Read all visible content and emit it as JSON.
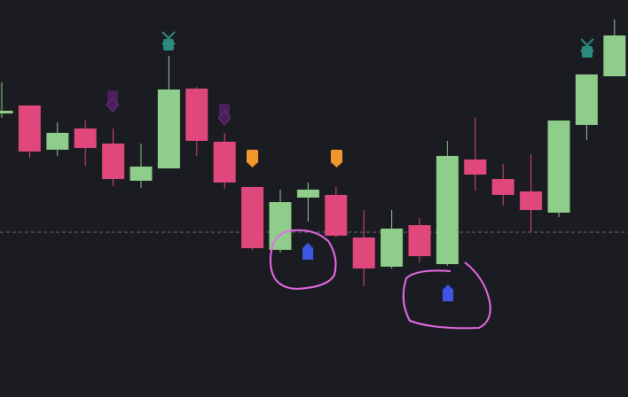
{
  "chart_data": {
    "type": "candlestick",
    "categories": [
      null,
      null,
      null,
      null,
      null,
      null,
      null,
      null,
      null,
      null,
      null,
      null,
      null,
      null,
      null,
      null,
      null,
      null,
      null,
      null,
      null,
      null,
      null
    ],
    "open": [
      320,
      329,
      279,
      303,
      286,
      244,
      258,
      348,
      288,
      237,
      166,
      225,
      228,
      180,
      147,
      194,
      150,
      268,
      246,
      232,
      208,
      307,
      362
    ],
    "high": [
      355,
      329,
      310,
      312,
      303,
      286,
      385,
      350,
      298,
      237,
      234,
      242,
      237,
      211,
      211,
      202,
      289,
      315,
      263,
      274,
      312,
      364,
      426
    ],
    "low": [
      315,
      270,
      272,
      261,
      238,
      236,
      258,
      272,
      235,
      166,
      163,
      198,
      180,
      125,
      145,
      152,
      148,
      233,
      216,
      186,
      203,
      290,
      362
    ],
    "close": [
      323,
      277,
      298,
      281,
      246,
      260,
      347,
      289,
      242,
      168,
      220,
      234,
      182,
      145,
      190,
      159,
      272,
      251,
      228,
      211,
      312,
      364,
      408
    ],
    "up_color": "#8fcd8a",
    "down_color": "#e0487c",
    "ylim": [
      0,
      448
    ],
    "price_line": 186
  }
}
